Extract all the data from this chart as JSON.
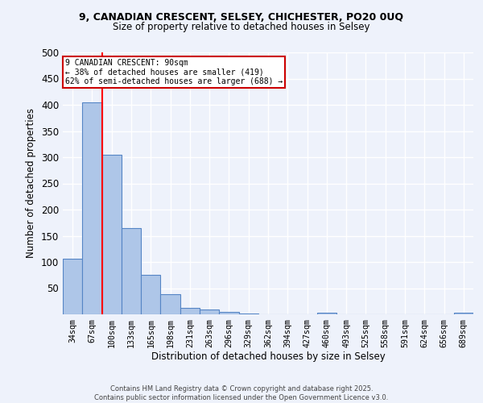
{
  "title_line1": "9, CANADIAN CRESCENT, SELSEY, CHICHESTER, PO20 0UQ",
  "title_line2": "Size of property relative to detached houses in Selsey",
  "xlabel": "Distribution of detached houses by size in Selsey",
  "ylabel": "Number of detached properties",
  "categories": [
    "34sqm",
    "67sqm",
    "100sqm",
    "133sqm",
    "165sqm",
    "198sqm",
    "231sqm",
    "263sqm",
    "296sqm",
    "329sqm",
    "362sqm",
    "394sqm",
    "427sqm",
    "460sqm",
    "493sqm",
    "525sqm",
    "558sqm",
    "591sqm",
    "624sqm",
    "656sqm",
    "689sqm"
  ],
  "values": [
    106,
    405,
    304,
    165,
    75,
    38,
    13,
    10,
    5,
    2,
    0,
    0,
    0,
    3,
    0,
    0,
    0,
    0,
    0,
    0,
    3
  ],
  "bar_color": "#aec6e8",
  "bar_edge_color": "#5585c5",
  "background_color": "#eef2fb",
  "grid_color": "#ffffff",
  "red_line_index": 2,
  "annotation_text_line1": "9 CANADIAN CRESCENT: 90sqm",
  "annotation_text_line2": "← 38% of detached houses are smaller (419)",
  "annotation_text_line3": "62% of semi-detached houses are larger (688) →",
  "annotation_box_facecolor": "#ffffff",
  "annotation_box_edgecolor": "#cc0000",
  "ylim": [
    0,
    500
  ],
  "yticks": [
    0,
    50,
    100,
    150,
    200,
    250,
    300,
    350,
    400,
    450,
    500
  ],
  "footnote_line1": "Contains HM Land Registry data © Crown copyright and database right 2025.",
  "footnote_line2": "Contains public sector information licensed under the Open Government Licence v3.0."
}
